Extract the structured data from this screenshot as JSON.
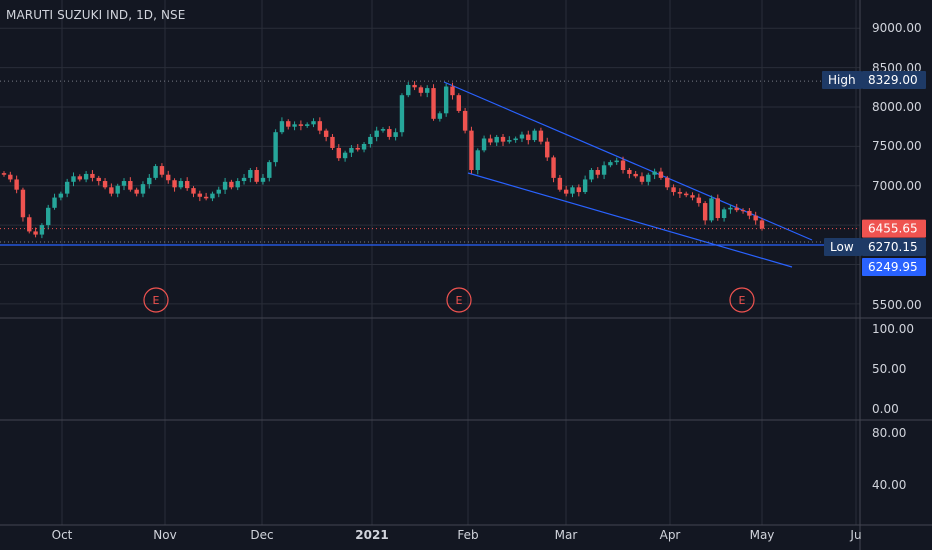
{
  "header": {
    "symbol_title": "MARUTI SUZUKI IND, 1D, NSE"
  },
  "colors": {
    "background": "#131722",
    "grid": "#2a2e39",
    "up": "#26a69a",
    "down": "#ef5350",
    "trendline": "#2962ff",
    "high_badge": "#1e3a66",
    "price_badge": "#ef5350",
    "price_blue_badge": "#2962ff"
  },
  "price_labels": {
    "high_label": "High",
    "high_value": "8329.00",
    "last_value": "6455.65",
    "low_label": "Low",
    "low_value": "6270.15",
    "line_value": "6249.95"
  },
  "earnings": {
    "marker_label": "E",
    "dates": [
      "Nov",
      "Feb",
      "May"
    ]
  },
  "chart_data": [
    {
      "type": "candlestick",
      "title": "MARUTI SUZUKI IND, 1D, NSE",
      "y_ticks": [
        "9000.00",
        "8500.00",
        "8000.00",
        "7500.00",
        "7000.00",
        "5500.00"
      ],
      "x_ticks": [
        "Oct",
        "Nov",
        "Dec",
        "2021",
        "Feb",
        "Mar",
        "Apr",
        "May",
        "Ju"
      ],
      "ylim": [
        5250,
        9250
      ],
      "high": 8329.0,
      "low": 6270.15,
      "last": 6455.65,
      "trendline_value": 6249.95,
      "closes": [
        7140,
        7080,
        6950,
        6600,
        6420,
        6380,
        6500,
        6720,
        6850,
        6900,
        7050,
        7120,
        7080,
        7150,
        7100,
        7060,
        6980,
        6900,
        7000,
        7060,
        6950,
        6900,
        7020,
        7100,
        7250,
        7140,
        7070,
        6980,
        7060,
        6970,
        6900,
        6860,
        6840,
        6900,
        6950,
        7050,
        6980,
        7060,
        7100,
        7200,
        7050,
        7100,
        7300,
        7680,
        7820,
        7750,
        7780,
        7760,
        7780,
        7820,
        7700,
        7620,
        7480,
        7350,
        7420,
        7480,
        7460,
        7530,
        7620,
        7700,
        7720,
        7620,
        7680,
        8150,
        8280,
        8250,
        8180,
        8240,
        7850,
        7920,
        8260,
        8150,
        7950,
        7700,
        7200,
        7450,
        7600,
        7550,
        7620,
        7560,
        7580,
        7600,
        7650,
        7580,
        7700,
        7560,
        7360,
        7100,
        6950,
        6900,
        6980,
        6920,
        7080,
        7200,
        7140,
        7260,
        7300,
        7320,
        7200,
        7150,
        7120,
        7050,
        7140,
        7180,
        7100,
        6980,
        6920,
        6900,
        6880,
        6850,
        6780,
        6560,
        6840,
        6590,
        6700,
        6720,
        6690,
        6680,
        6620,
        6560,
        6455.65
      ],
      "rsi": {
        "y_ticks": [
          "100.00",
          "50.00",
          "0.00"
        ]
      },
      "indicator2": {
        "y_ticks": [
          "80.00",
          "40.00"
        ]
      }
    }
  ]
}
